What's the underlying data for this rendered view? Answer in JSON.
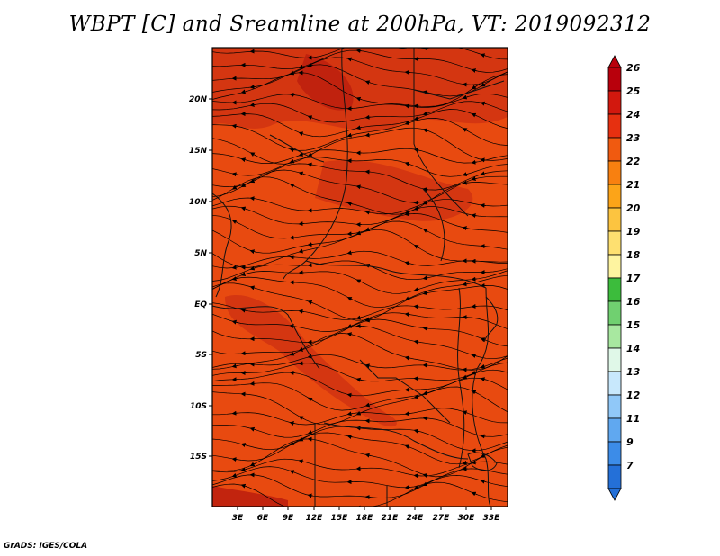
{
  "title": "WBPT [C] and Sreamline at 200hPa, VT: 2019092312",
  "credit": "GrADS: IGES/COLA",
  "map": {
    "lat_labels": [
      "20N",
      "15N",
      "10N",
      "5N",
      "EQ",
      "5S",
      "10S",
      "15S"
    ],
    "lon_labels": [
      "3E",
      "6E",
      "9E",
      "12E",
      "15E",
      "18E",
      "21E",
      "24E",
      "27E",
      "30E",
      "33E"
    ],
    "field_colors": {
      "base": "#e84a10",
      "warm": "#d03212",
      "hot": "#be200e"
    }
  },
  "colorbar": {
    "levels": [
      "26",
      "25",
      "24",
      "23",
      "22",
      "21",
      "20",
      "19",
      "18",
      "17",
      "16",
      "15",
      "14",
      "13",
      "12",
      "11",
      "9",
      "7"
    ],
    "colors": [
      "#b8000c",
      "#d2180e",
      "#e63010",
      "#f05a10",
      "#f88010",
      "#fca418",
      "#fcc440",
      "#fee070",
      "#fef4a0",
      "#3cbc3c",
      "#70d070",
      "#a8e8a0",
      "#e0f8e8",
      "#c8e8fc",
      "#90c8f8",
      "#60a8f0",
      "#3c8ce8",
      "#2470d8"
    ]
  }
}
